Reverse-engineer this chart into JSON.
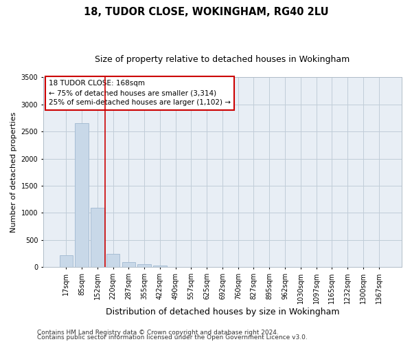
{
  "title1": "18, TUDOR CLOSE, WOKINGHAM, RG40 2LU",
  "title2": "Size of property relative to detached houses in Wokingham",
  "xlabel": "Distribution of detached houses by size in Wokingham",
  "ylabel": "Number of detached properties",
  "categories": [
    "17sqm",
    "85sqm",
    "152sqm",
    "220sqm",
    "287sqm",
    "355sqm",
    "422sqm",
    "490sqm",
    "557sqm",
    "625sqm",
    "692sqm",
    "760sqm",
    "827sqm",
    "895sqm",
    "962sqm",
    "1030sqm",
    "1097sqm",
    "1165sqm",
    "1232sqm",
    "1300sqm",
    "1367sqm"
  ],
  "values": [
    220,
    2650,
    1100,
    250,
    90,
    55,
    30,
    0,
    0,
    0,
    0,
    0,
    0,
    0,
    0,
    0,
    0,
    0,
    0,
    0,
    0
  ],
  "bar_color": "#c8d8e8",
  "bar_edge_color": "#a0b8d0",
  "vline_pos": 2.5,
  "vline_color": "#cc0000",
  "annotation_line1": "18 TUDOR CLOSE: 168sqm",
  "annotation_line2": "← 75% of detached houses are smaller (3,314)",
  "annotation_line3": "25% of semi-detached houses are larger (1,102) →",
  "annotation_box_color": "#cc0000",
  "ylim": [
    0,
    3500
  ],
  "yticks": [
    0,
    500,
    1000,
    1500,
    2000,
    2500,
    3000,
    3500
  ],
  "footer1": "Contains HM Land Registry data © Crown copyright and database right 2024.",
  "footer2": "Contains public sector information licensed under the Open Government Licence v3.0.",
  "bg_color": "#ffffff",
  "plot_bg_color": "#e8eef5",
  "grid_color": "#c0ccd8",
  "title1_fontsize": 10.5,
  "title2_fontsize": 9,
  "xlabel_fontsize": 9,
  "ylabel_fontsize": 8,
  "tick_fontsize": 7,
  "annotation_fontsize": 7.5,
  "footer_fontsize": 6.5
}
